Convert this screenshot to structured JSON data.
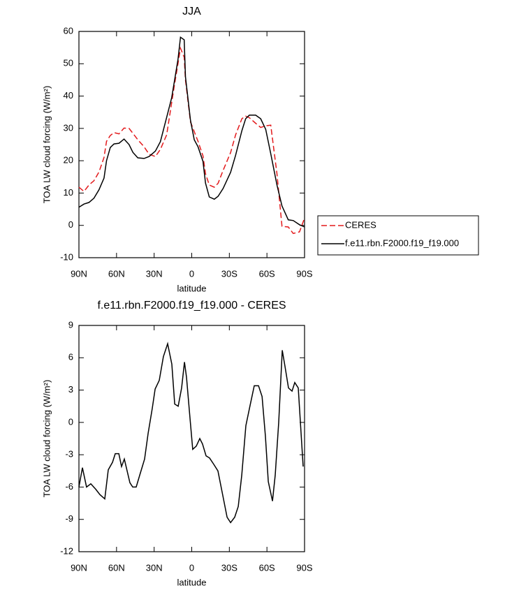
{
  "chart_data": [
    {
      "type": "line",
      "title": "JJA",
      "xlabel": "latitude",
      "ylabel": "TOA LW cloud forcing (W/m²)",
      "x": [
        90,
        86,
        82,
        78,
        74,
        70,
        68,
        65,
        62,
        58,
        54,
        50,
        47,
        43,
        38,
        34,
        29,
        25,
        20,
        16,
        14,
        11,
        9,
        6,
        5,
        1,
        -2,
        -5,
        -9,
        -11,
        -14,
        -18,
        -21,
        -25,
        -31,
        -35,
        -40,
        -43,
        -46,
        -51,
        -55,
        -59,
        -63,
        -68,
        -72,
        -77,
        -81,
        -86,
        -90
      ],
      "series": [
        {
          "name": "CERES",
          "color": "#e31a1c",
          "dashed": true,
          "values": [
            11.8,
            10.5,
            12.5,
            13.8,
            16.5,
            21,
            26,
            27.8,
            28.7,
            28.3,
            30.1,
            30,
            28.5,
            26.5,
            24.3,
            22,
            21.3,
            23.5,
            28,
            38,
            43,
            50,
            54.8,
            52,
            45,
            32,
            29,
            26,
            21.5,
            16,
            12.5,
            11.8,
            13,
            17,
            22.5,
            28,
            33,
            33.8,
            33.3,
            31.6,
            30.3,
            30.8,
            31,
            16,
            -0.3,
            -0.5,
            -2.5,
            -2,
            2.3
          ]
        },
        {
          "name": "f.e11.rbn.F2000.f19_f19.000",
          "color": "#000000",
          "dashed": false,
          "values": [
            5.6,
            6.6,
            7.1,
            8.4,
            11,
            14.6,
            20,
            24.1,
            25.2,
            25.4,
            26.7,
            25,
            22.6,
            20.9,
            20.7,
            21.3,
            23,
            25.9,
            33.4,
            39.5,
            44.2,
            51.3,
            58.2,
            57.4,
            46,
            32.5,
            26.5,
            24.3,
            19.8,
            13.1,
            8.8,
            8.1,
            9,
            11.4,
            16.4,
            21.7,
            29.3,
            33,
            34.1,
            34.1,
            33,
            29.7,
            22.2,
            12.5,
            6,
            1.7,
            1.5,
            0.2,
            -0.5
          ]
        }
      ],
      "xlim": [
        90,
        -90
      ],
      "xticks": [
        {
          "value": 90,
          "label": "90N"
        },
        {
          "value": 60,
          "label": "60N"
        },
        {
          "value": 30,
          "label": "30N"
        },
        0,
        {
          "value": -30,
          "label": "30S"
        },
        {
          "value": -60,
          "label": "60S"
        },
        {
          "value": -90,
          "label": "90S"
        }
      ],
      "ylim": [
        -10,
        60
      ],
      "yticks": [
        -10,
        0,
        10,
        20,
        30,
        40,
        50,
        60
      ]
    },
    {
      "type": "line",
      "title": "f.e11.rbn.F2000.f19_f19.000 - CERES",
      "xlabel": "latitude",
      "ylabel": "TOA LW cloud forcing (W/m²)",
      "x": [
        90,
        87.2,
        83.9,
        80.5,
        76.6,
        73.3,
        69.4,
        66.6,
        63.2,
        61,
        58.2,
        56,
        53.8,
        49.3,
        47.1,
        44.3,
        41.5,
        37.6,
        34.8,
        31.5,
        29.2,
        25.9,
        22.6,
        19.2,
        15.9,
        13.6,
        10.8,
        8.1,
        5.8,
        4.2,
        1.4,
        -0.8,
        -3.6,
        -6.4,
        -8.6,
        -11.4,
        -14.2,
        -17.6,
        -20.9,
        -24.3,
        -28.2,
        -31,
        -34.3,
        -37.1,
        -39.9,
        -43.2,
        -46.6,
        -49.9,
        -53.3,
        -56.1,
        -58.8,
        -61.1,
        -64.4,
        -66.6,
        -69.4,
        -72.2,
        -74.4,
        -77.2,
        -80,
        -82.2,
        -85,
        -88.9
      ],
      "color": "#000000",
      "values": [
        -6,
        -4.2,
        -6,
        -5.7,
        -6.2,
        -6.7,
        -7.1,
        -4.4,
        -3.7,
        -2.9,
        -2.9,
        -4.1,
        -3.4,
        -5.6,
        -6,
        -6,
        -4.9,
        -3.4,
        -1,
        1.3,
        3.1,
        3.9,
        6.1,
        7.3,
        5.4,
        1.7,
        1.5,
        3.2,
        5.6,
        4.2,
        0.4,
        -2.5,
        -2.2,
        -1.5,
        -2,
        -3.1,
        -3.3,
        -3.9,
        -4.5,
        -6.5,
        -8.8,
        -9.3,
        -8.8,
        -7.8,
        -4.9,
        -0.3,
        1.6,
        3.4,
        3.4,
        2.4,
        -1.3,
        -5.5,
        -7.3,
        -4.9,
        0,
        6.7,
        5.2,
        3.2,
        2.9,
        3.7,
        3.2,
        -4.1
      ],
      "xlim": [
        90,
        -90
      ],
      "xticks": [
        {
          "value": 90,
          "label": "90N"
        },
        {
          "value": 60,
          "label": "60N"
        },
        {
          "value": 30,
          "label": "30N"
        },
        0,
        {
          "value": -30,
          "label": "30S"
        },
        {
          "value": -60,
          "label": "60S"
        },
        {
          "value": -90,
          "label": "90S"
        }
      ],
      "ylim": [
        -12,
        9
      ],
      "yticks": [
        -12,
        -9,
        -6,
        -3,
        0,
        3,
        6,
        9
      ]
    }
  ]
}
